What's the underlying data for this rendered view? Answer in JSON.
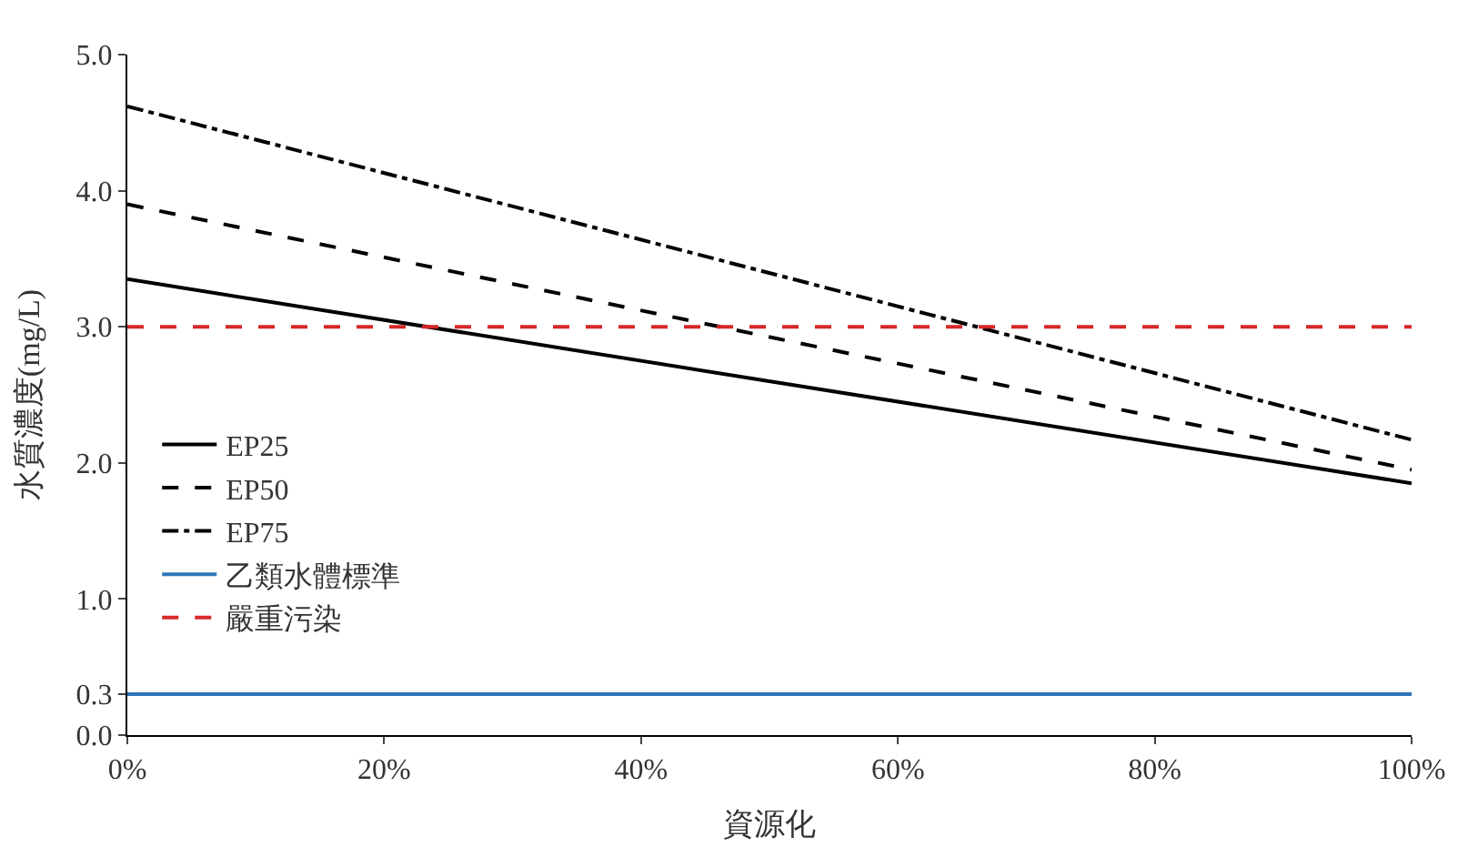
{
  "chart_data": {
    "type": "line",
    "xlabel": "資源化",
    "ylabel": "水質濃度(mg/L)",
    "x": [
      0,
      100
    ],
    "series": [
      {
        "name": "EP25",
        "color": "#000000",
        "values": [
          3.35,
          1.85
        ],
        "line_style": "solid"
      },
      {
        "name": "EP50",
        "color": "#000000",
        "values": [
          3.9,
          1.95
        ],
        "line_style": "dashed"
      },
      {
        "name": "EP75",
        "color": "#000000",
        "values": [
          4.62,
          2.17
        ],
        "line_style": "dashdot"
      },
      {
        "name": "乙類水體標準",
        "color": "#2e75b6",
        "values": [
          0.3,
          0.3
        ],
        "line_style": "solid"
      },
      {
        "name": "嚴重污染",
        "color": "#d62728",
        "values": [
          3.0,
          3.0
        ],
        "line_style": "dashed"
      }
    ],
    "xlim": [
      0,
      100
    ],
    "xticks": [
      {
        "value": 0,
        "label": "0%"
      },
      {
        "value": 20,
        "label": "20%"
      },
      {
        "value": 40,
        "label": "40%"
      },
      {
        "value": 60,
        "label": "60%"
      },
      {
        "value": 80,
        "label": "80%"
      },
      {
        "value": 100,
        "label": "100%"
      }
    ],
    "ylim": [
      0,
      5
    ],
    "yticks": [
      {
        "value": 0,
        "label": "0.0"
      },
      {
        "value": 0.3,
        "label": "0.3"
      },
      {
        "value": 1,
        "label": "1.0"
      },
      {
        "value": 2,
        "label": "2.0"
      },
      {
        "value": 3,
        "label": "3.0"
      },
      {
        "value": 4,
        "label": "4.0"
      },
      {
        "value": 5,
        "label": "5.0"
      }
    ],
    "legend": "left",
    "marker": "none"
  }
}
